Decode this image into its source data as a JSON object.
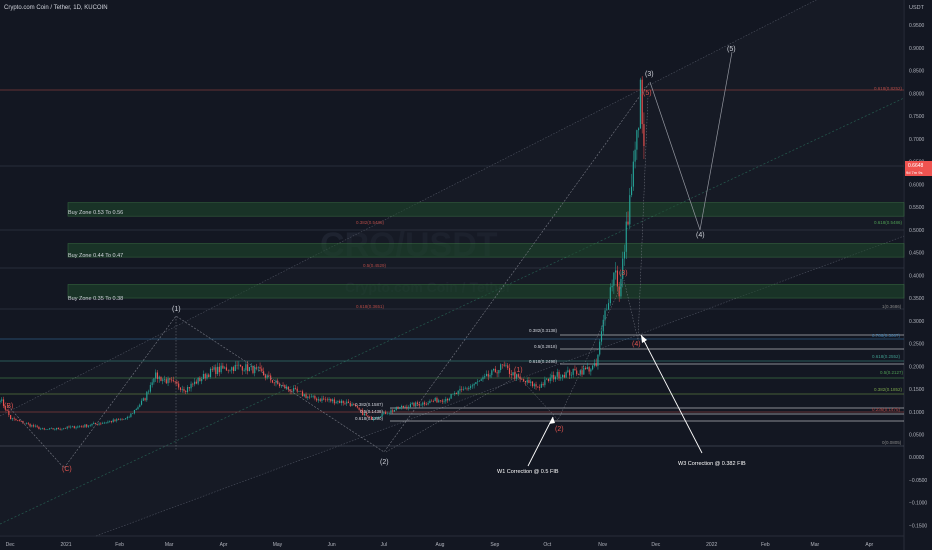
{
  "header": {
    "symbol_title": "Crypto.com Coin / Tether, 1D, KUCOIN"
  },
  "price_axis": {
    "currency": "USDT",
    "ticks": [
      "0.9500",
      "0.9000",
      "0.8500",
      "0.8000",
      "0.7500",
      "0.7000",
      "0.6500",
      "0.6000",
      "0.5500",
      "0.5000",
      "0.4500",
      "0.4000",
      "0.3500",
      "0.3000",
      "0.2500",
      "0.2000",
      "0.1500",
      "0.1000",
      "0.0500",
      "0.0000",
      "−0.0500",
      "−0.1000",
      "−0.1500"
    ],
    "current_price_label": "0.6648",
    "current_price_sub": "9d 7m 9s"
  },
  "time_axis": {
    "ticks": [
      "Dec",
      "2021",
      "Feb",
      "Mar",
      "Apr",
      "May",
      "Jun",
      "Jul",
      "Aug",
      "Sep",
      "Oct",
      "Nov",
      "Dec",
      "2022",
      "Feb",
      "Mar",
      "Apr"
    ]
  },
  "watermark": {
    "line1": "CRO/USDT",
    "line2": "Crypto.com Coin / Tether"
  },
  "zones": [
    {
      "label": "Buy Zone 0.53 To 0.56",
      "fib_left": "0.382(0.5486)",
      "fib_right": "0.618(0.5486)"
    },
    {
      "label": "Buy Zone 0.44 To 0.47",
      "fib_left": "0.5(0.4529)"
    },
    {
      "label": "Buy Zone 0.35 To 0.38",
      "fib_left": "0.618(0.3651)",
      "fib_right": "1(0.3686)"
    }
  ],
  "fib_levels": {
    "top_right": "0.618(0.8252)",
    "w3": [
      "0.382(0.3138)",
      "0.5(0.2818)",
      "0.618(0.2498)"
    ],
    "w1": [
      "0.382(0.1587)",
      "0.5(0.1438)",
      "0.618(0.1290)"
    ],
    "right_stack": [
      "0.786(0.3087)",
      "0.618(0.2552)",
      "0.5(0.2127)",
      "0.382(0.1852)",
      "0.236(0.1475)",
      "0(0.0805)"
    ]
  },
  "wave_labels": {
    "primary": [
      "(B)",
      "(C)",
      "(1)",
      "(2)",
      "(3)",
      "(4)",
      "(5)"
    ],
    "minor": [
      "(1)",
      "(2)",
      "(3)",
      "(4)",
      "(5)"
    ]
  },
  "annotations": {
    "w1": "W1 Correction @ 0.5 FIB",
    "w3": "W3 Correction @ 0.382 FIB"
  },
  "chart_data": {
    "type": "candlestick",
    "title": "Crypto.com Coin / Tether, 1D, KUCOIN",
    "ylim": [
      -0.16,
      0.99
    ],
    "y_unit": "USDT",
    "x_range": [
      "2020-11-25",
      "2022-04-20"
    ],
    "anchors": [
      {
        "date": "2020-11-25",
        "price": 0.13
      },
      {
        "date": "2020-12-01",
        "price": 0.085
      },
      {
        "date": "2020-12-20",
        "price": 0.06
      },
      {
        "date": "2021-01-10",
        "price": 0.068
      },
      {
        "date": "2021-02-05",
        "price": 0.085
      },
      {
        "date": "2021-02-15",
        "price": 0.13
      },
      {
        "date": "2021-02-20",
        "price": 0.18
      },
      {
        "date": "2021-02-26",
        "price": 0.17
      },
      {
        "date": "2021-03-10",
        "price": 0.15
      },
      {
        "date": "2021-03-25",
        "price": 0.19
      },
      {
        "date": "2021-04-10",
        "price": 0.2
      },
      {
        "date": "2021-04-20",
        "price": 0.19
      },
      {
        "date": "2021-05-01",
        "price": 0.16
      },
      {
        "date": "2021-05-20",
        "price": 0.13
      },
      {
        "date": "2021-06-10",
        "price": 0.12
      },
      {
        "date": "2021-06-22",
        "price": 0.085
      },
      {
        "date": "2021-07-10",
        "price": 0.11
      },
      {
        "date": "2021-08-05",
        "price": 0.13
      },
      {
        "date": "2021-08-25",
        "price": 0.17
      },
      {
        "date": "2021-09-05",
        "price": 0.2
      },
      {
        "date": "2021-09-15",
        "price": 0.17
      },
      {
        "date": "2021-09-25",
        "price": 0.155
      },
      {
        "date": "2021-10-05",
        "price": 0.18
      },
      {
        "date": "2021-10-20",
        "price": 0.19
      },
      {
        "date": "2021-10-28",
        "price": 0.2
      },
      {
        "date": "2021-11-02",
        "price": 0.32
      },
      {
        "date": "2021-11-08",
        "price": 0.42
      },
      {
        "date": "2021-11-10",
        "price": 0.35
      },
      {
        "date": "2021-11-14",
        "price": 0.5
      },
      {
        "date": "2021-11-17",
        "price": 0.6
      },
      {
        "date": "2021-11-20",
        "price": 0.7
      },
      {
        "date": "2021-11-22",
        "price": 0.8
      },
      {
        "date": "2021-11-24",
        "price": 0.665
      }
    ],
    "projection": [
      {
        "label": "(3)",
        "date": "2021-11-24",
        "price": 0.84
      },
      {
        "label": "(4)",
        "date": "2021-12-25",
        "price": 0.54
      },
      {
        "label": "(5)",
        "date": "2022-01-05",
        "price": 0.9
      }
    ],
    "buy_zones": [
      {
        "label": "Buy Zone 0.53 To 0.56",
        "low": 0.53,
        "high": 0.56
      },
      {
        "label": "Buy Zone 0.44 To 0.47",
        "low": 0.44,
        "high": 0.47
      },
      {
        "label": "Buy Zone 0.35 To 0.38",
        "low": 0.35,
        "high": 0.38
      }
    ]
  }
}
